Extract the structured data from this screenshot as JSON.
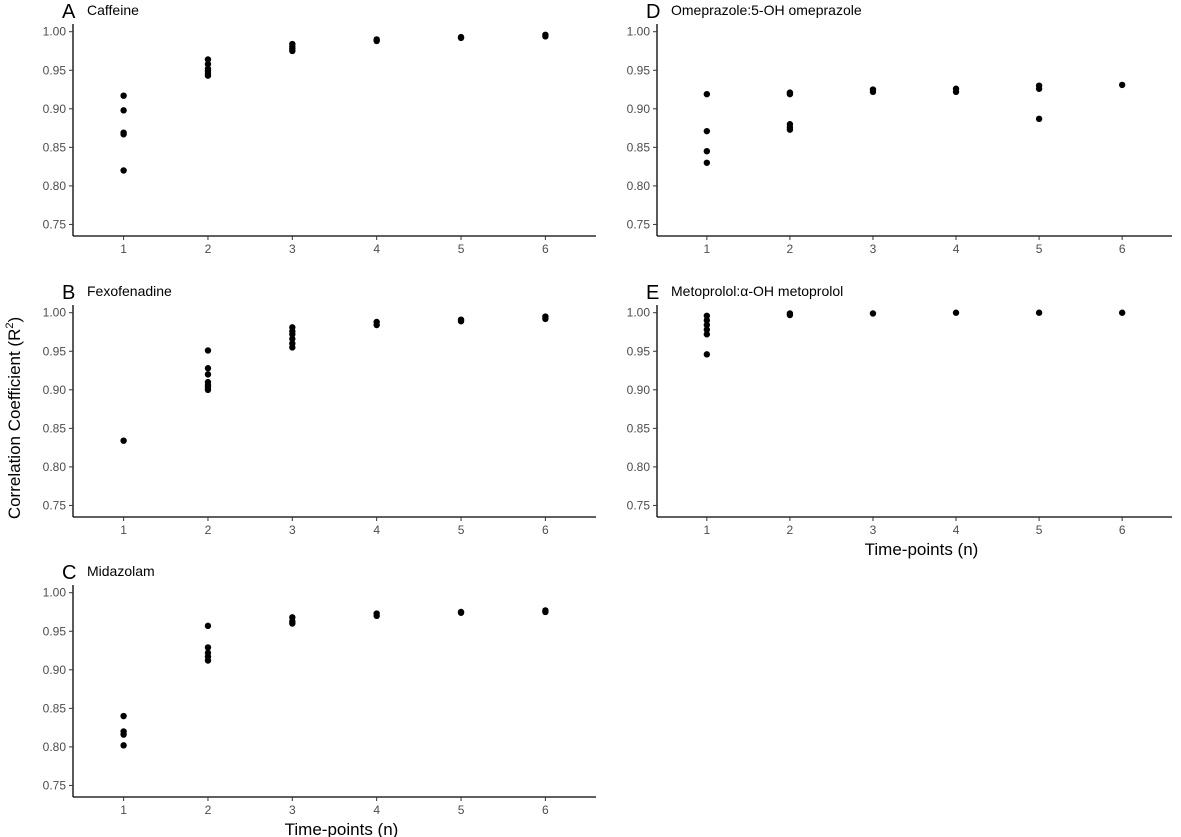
{
  "figure": {
    "ylabel_main": "Correlation Coefficient (R",
    "ylabel_sup": "2",
    "ylabel_close": ")",
    "xlabel": "Time-points (n)"
  },
  "chart_data": [
    {
      "type": "scatter",
      "panel": "A",
      "title": "Caffeine",
      "xlabel": "",
      "ylabel": "Correlation Coefficient (R2)",
      "x_ticks": [
        1,
        2,
        3,
        4,
        5,
        6
      ],
      "y_ticks": [
        "0.75",
        "0.80",
        "0.85",
        "0.90",
        "0.95",
        "1.00"
      ],
      "ylim": [
        0.735,
        1.01
      ],
      "grid": false,
      "points": [
        [
          1,
          0.917
        ],
        [
          1,
          0.898
        ],
        [
          1,
          0.869
        ],
        [
          1,
          0.867
        ],
        [
          1,
          0.82
        ],
        [
          2,
          0.964
        ],
        [
          2,
          0.958
        ],
        [
          2,
          0.952
        ],
        [
          2,
          0.949
        ],
        [
          2,
          0.946
        ],
        [
          2,
          0.943
        ],
        [
          3,
          0.984
        ],
        [
          3,
          0.981
        ],
        [
          3,
          0.978
        ],
        [
          3,
          0.975
        ],
        [
          4,
          0.99
        ],
        [
          4,
          0.988
        ],
        [
          5,
          0.993
        ],
        [
          5,
          0.992
        ],
        [
          6,
          0.996
        ],
        [
          6,
          0.994
        ]
      ]
    },
    {
      "type": "scatter",
      "panel": "B",
      "title": "Fexofenadine",
      "xlabel": "",
      "ylabel": "Correlation Coefficient (R2)",
      "x_ticks": [
        1,
        2,
        3,
        4,
        5,
        6
      ],
      "y_ticks": [
        "0.75",
        "0.80",
        "0.85",
        "0.90",
        "0.95",
        "1.00"
      ],
      "ylim": [
        0.735,
        1.01
      ],
      "grid": false,
      "points": [
        [
          1,
          0.834
        ],
        [
          2,
          0.951
        ],
        [
          2,
          0.928
        ],
        [
          2,
          0.92
        ],
        [
          2,
          0.91
        ],
        [
          2,
          0.906
        ],
        [
          2,
          0.903
        ],
        [
          2,
          0.9
        ],
        [
          3,
          0.981
        ],
        [
          3,
          0.976
        ],
        [
          3,
          0.972
        ],
        [
          3,
          0.966
        ],
        [
          3,
          0.96
        ],
        [
          3,
          0.955
        ],
        [
          4,
          0.988
        ],
        [
          4,
          0.984
        ],
        [
          5,
          0.991
        ],
        [
          5,
          0.989
        ],
        [
          6,
          0.995
        ],
        [
          6,
          0.992
        ]
      ]
    },
    {
      "type": "scatter",
      "panel": "C",
      "title": "Midazolam",
      "xlabel": "Time-points (n)",
      "ylabel": "Correlation Coefficient (R2)",
      "x_ticks": [
        1,
        2,
        3,
        4,
        5,
        6
      ],
      "y_ticks": [
        "0.75",
        "0.80",
        "0.85",
        "0.90",
        "0.95",
        "1.00"
      ],
      "ylim": [
        0.735,
        1.01
      ],
      "grid": false,
      "points": [
        [
          1,
          0.84
        ],
        [
          1,
          0.82
        ],
        [
          1,
          0.816
        ],
        [
          1,
          0.802
        ],
        [
          2,
          0.957
        ],
        [
          2,
          0.929
        ],
        [
          2,
          0.922
        ],
        [
          2,
          0.917
        ],
        [
          2,
          0.912
        ],
        [
          3,
          0.968
        ],
        [
          3,
          0.963
        ],
        [
          3,
          0.96
        ],
        [
          4,
          0.973
        ],
        [
          4,
          0.97
        ],
        [
          5,
          0.975
        ],
        [
          5,
          0.974
        ],
        [
          6,
          0.977
        ],
        [
          6,
          0.975
        ]
      ]
    },
    {
      "type": "scatter",
      "panel": "D",
      "title": "Omeprazole:5-OH omeprazole",
      "xlabel": "",
      "ylabel": "",
      "x_ticks": [
        1,
        2,
        3,
        4,
        5,
        6
      ],
      "y_ticks": [
        "0.75",
        "0.80",
        "0.85",
        "0.90",
        "0.95",
        "1.00"
      ],
      "ylim": [
        0.735,
        1.01
      ],
      "grid": false,
      "points": [
        [
          1,
          0.919
        ],
        [
          1,
          0.871
        ],
        [
          1,
          0.845
        ],
        [
          1,
          0.83
        ],
        [
          2,
          0.921
        ],
        [
          2,
          0.919
        ],
        [
          2,
          0.88
        ],
        [
          2,
          0.876
        ],
        [
          2,
          0.873
        ],
        [
          3,
          0.925
        ],
        [
          3,
          0.922
        ],
        [
          4,
          0.926
        ],
        [
          4,
          0.922
        ],
        [
          5,
          0.93
        ],
        [
          5,
          0.926
        ],
        [
          5,
          0.887
        ],
        [
          6,
          0.931
        ]
      ]
    },
    {
      "type": "scatter",
      "panel": "E",
      "title": "Metoprolol:α-OH metoprolol",
      "xlabel": "Time-points (n)",
      "ylabel": "",
      "x_ticks": [
        1,
        2,
        3,
        4,
        5,
        6
      ],
      "y_ticks": [
        "0.75",
        "0.80",
        "0.85",
        "0.90",
        "0.95",
        "1.00"
      ],
      "ylim": [
        0.735,
        1.01
      ],
      "grid": false,
      "points": [
        [
          1,
          0.996
        ],
        [
          1,
          0.99
        ],
        [
          1,
          0.984
        ],
        [
          1,
          0.978
        ],
        [
          1,
          0.972
        ],
        [
          1,
          0.946
        ],
        [
          2,
          0.999
        ],
        [
          2,
          0.997
        ],
        [
          3,
          0.999
        ],
        [
          4,
          1.0
        ],
        [
          5,
          1.0
        ],
        [
          6,
          1.0
        ]
      ]
    }
  ]
}
